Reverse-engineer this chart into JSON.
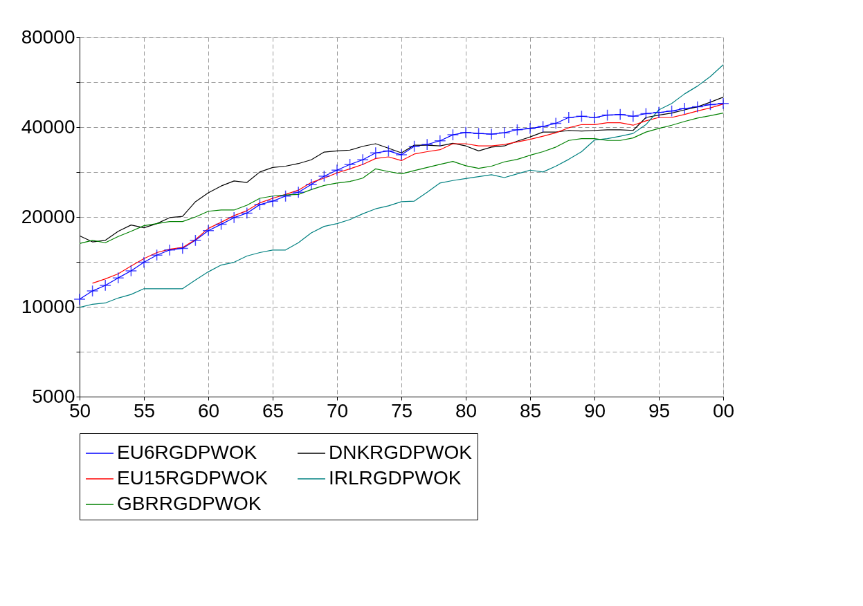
{
  "chart_data": {
    "type": "line",
    "log": "y",
    "grid": true,
    "legend": "bottom",
    "line_style": "solid",
    "x": [
      1950,
      1951,
      1952,
      1953,
      1954,
      1955,
      1956,
      1957,
      1958,
      1959,
      1960,
      1961,
      1962,
      1963,
      1964,
      1965,
      1966,
      1967,
      1968,
      1969,
      1970,
      1971,
      1972,
      1973,
      1974,
      1975,
      1976,
      1977,
      1978,
      1979,
      1980,
      1981,
      1982,
      1983,
      1984,
      1985,
      1986,
      1987,
      1988,
      1989,
      1990,
      1991,
      1992,
      1993,
      1994,
      1995,
      1996,
      1997,
      1998,
      1999,
      2000
    ],
    "xlim": [
      1950,
      2000
    ],
    "xticks": [
      {
        "value": 1950,
        "label": "50"
      },
      {
        "value": 1955,
        "label": "55"
      },
      {
        "value": 1960,
        "label": "60"
      },
      {
        "value": 1965,
        "label": "65"
      },
      {
        "value": 1970,
        "label": "70"
      },
      {
        "value": 1975,
        "label": "75"
      },
      {
        "value": 1980,
        "label": "80"
      },
      {
        "value": 1985,
        "label": "85"
      },
      {
        "value": 1990,
        "label": "90"
      },
      {
        "value": 1995,
        "label": "95"
      },
      {
        "value": 2000,
        "label": "00"
      }
    ],
    "ylim": [
      5000,
      80000
    ],
    "yticks": [
      5000,
      {
        "value": 7071,
        "label": null
      },
      10000,
      {
        "value": 14142,
        "label": null
      },
      20000,
      {
        "value": 28284,
        "label": null
      },
      40000,
      {
        "value": 56569,
        "label": null
      },
      80000
    ],
    "series": [
      {
        "name": "EU6RGDPWOK",
        "color": "#0000ff",
        "marker": "cross",
        "values": [
          10600,
          11300,
          11800,
          12500,
          13200,
          14100,
          14900,
          15500,
          15700,
          16700,
          18000,
          18900,
          19900,
          20600,
          22000,
          22600,
          23500,
          24200,
          25700,
          27400,
          28700,
          30000,
          31100,
          32800,
          33300,
          32300,
          34500,
          35000,
          36000,
          37700,
          38400,
          38100,
          37900,
          38300,
          39200,
          39600,
          40200,
          41200,
          43100,
          43500,
          43100,
          43900,
          44100,
          43500,
          44400,
          44800,
          45300,
          46200,
          46800,
          47600,
          48000
        ]
      },
      {
        "name": "DNKRGDPWOK",
        "color": "#000000",
        "marker": "none",
        "values": [
          17300,
          16500,
          16700,
          17900,
          18800,
          18400,
          19000,
          19900,
          20100,
          22500,
          24100,
          25400,
          26400,
          26100,
          28300,
          29300,
          29600,
          30200,
          31100,
          33000,
          33300,
          33500,
          34500,
          35200,
          34000,
          32800,
          34800,
          34800,
          34600,
          35300,
          34600,
          33300,
          34300,
          34600,
          35900,
          37100,
          38500,
          38500,
          39000,
          38800,
          39000,
          39200,
          39200,
          39000,
          43100,
          43900,
          44600,
          45700,
          46800,
          48500,
          50400
        ]
      },
      {
        "name": "EU15RGDPWOK",
        "color": "#ff0000",
        "marker": "none",
        "values": [
          null,
          12000,
          12400,
          12900,
          13700,
          14500,
          15200,
          15600,
          15800,
          16800,
          18300,
          19200,
          20200,
          21000,
          22300,
          23100,
          23800,
          24600,
          26100,
          27000,
          28100,
          29000,
          30000,
          31400,
          31800,
          30900,
          32500,
          33100,
          33600,
          35200,
          35200,
          34600,
          34600,
          35000,
          35700,
          36400,
          37300,
          38300,
          39800,
          40800,
          40800,
          41400,
          41400,
          40600,
          42000,
          43100,
          43100,
          44100,
          45300,
          46400,
          47800
        ]
      },
      {
        "name": "IRLRGDPWOK",
        "color": "#008080",
        "marker": "none",
        "values": [
          9950,
          10200,
          10300,
          10700,
          11000,
          11500,
          11500,
          11500,
          11500,
          12300,
          13100,
          13800,
          14100,
          14800,
          15200,
          15500,
          15500,
          16400,
          17700,
          18600,
          19000,
          19600,
          20500,
          21300,
          21800,
          22500,
          22600,
          24200,
          26000,
          26500,
          26900,
          27300,
          27700,
          27100,
          27900,
          28700,
          28300,
          29600,
          31200,
          33100,
          36200,
          36600,
          37300,
          38100,
          40800,
          45700,
          48000,
          51700,
          54900,
          59100,
          64700
        ]
      },
      {
        "name": "GBRRGDPWOK",
        "color": "#008000",
        "marker": "none",
        "values": [
          16300,
          16700,
          16400,
          17200,
          17900,
          18700,
          19000,
          19300,
          19300,
          20000,
          20900,
          21100,
          21100,
          21900,
          23100,
          23500,
          23700,
          23800,
          24700,
          25500,
          26000,
          26300,
          27000,
          29000,
          28400,
          27900,
          28600,
          29300,
          30000,
          30700,
          29700,
          29100,
          29600,
          30600,
          31200,
          32200,
          33100,
          34300,
          36100,
          36600,
          36600,
          36100,
          36100,
          36800,
          38500,
          39600,
          40600,
          41800,
          42900,
          43700,
          44600
        ]
      }
    ]
  }
}
